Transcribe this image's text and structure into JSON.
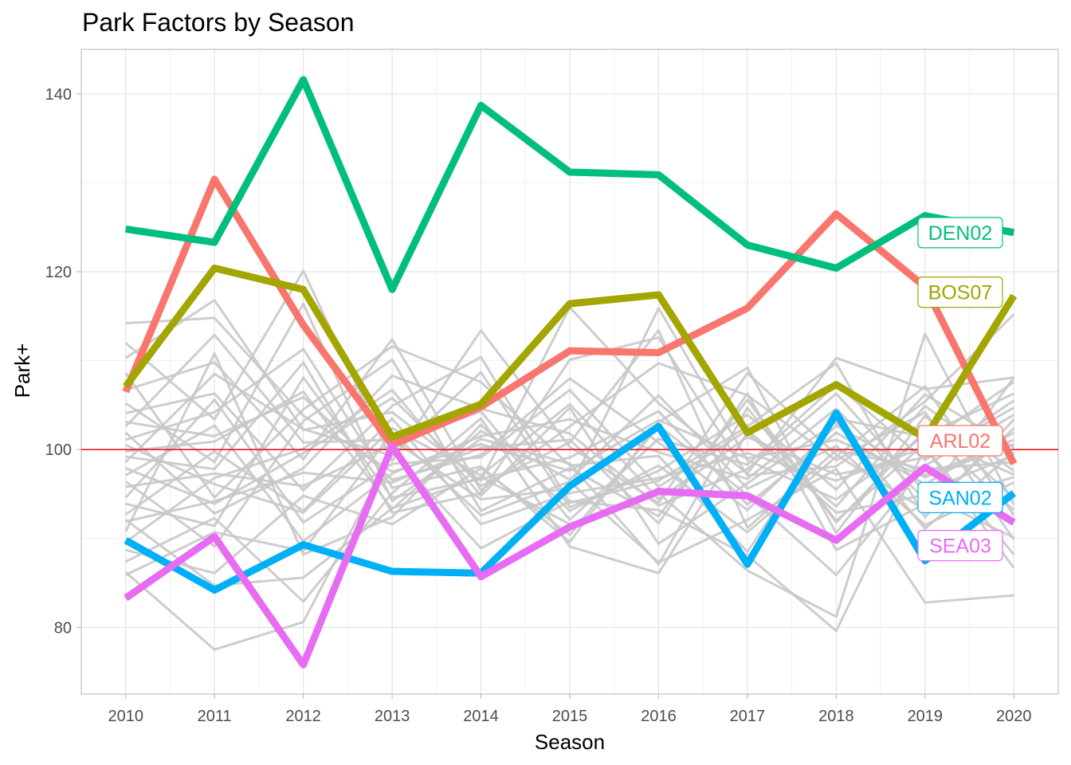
{
  "chart_data": {
    "type": "line",
    "title": "Park Factors by Season",
    "xlabel": "Season",
    "ylabel": "Park+",
    "x": [
      2010,
      2011,
      2012,
      2013,
      2014,
      2015,
      2016,
      2017,
      2018,
      2019,
      2020
    ],
    "xlim": [
      2009.5,
      2020.5
    ],
    "ylim": [
      72.5,
      145
    ],
    "yticks": [
      80,
      100,
      120,
      140
    ],
    "grid": true,
    "reference_line": {
      "y": 100,
      "color": "#e31a1c"
    },
    "background_color": "#c8c8c8",
    "highlighted_series": [
      {
        "name": "ARL02",
        "color": "#F8766D",
        "values": [
          106.5,
          130.4,
          114,
          100.5,
          104.8,
          111.1,
          110.9,
          115.9,
          126.5,
          118.3,
          98.4
        ]
      },
      {
        "name": "BOS07",
        "color": "#A3A500",
        "values": [
          107.1,
          120.4,
          118,
          101.4,
          105.1,
          116.4,
          117.4,
          101.9,
          107.3,
          101.3,
          117.3
        ]
      },
      {
        "name": "DEN02",
        "color": "#00BF7D",
        "values": [
          124.8,
          123.3,
          141.6,
          118,
          138.7,
          131.2,
          130.9,
          123,
          120.4,
          126.3,
          124.4
        ]
      },
      {
        "name": "SAN02",
        "color": "#00B0F6",
        "values": [
          89.8,
          84.2,
          89.3,
          86.3,
          86.1,
          95.9,
          102.6,
          87.1,
          104.1,
          87.5,
          95.1
        ]
      },
      {
        "name": "SEA03",
        "color": "#E76BF3",
        "values": [
          83.3,
          90.2,
          75.8,
          100.4,
          85.7,
          91.3,
          95.3,
          94.8,
          89.8,
          98,
          91.8
        ]
      }
    ],
    "background_series": [
      [
        114.2,
        114.8,
        103.8,
        97.5,
        100.6,
        97.6,
        103.3,
        99,
        101.1,
        96.9,
        100.6
      ],
      [
        112,
        103.4,
        120.1,
        98.7,
        113.4,
        100.3,
        94,
        108.6,
        99.4,
        93.2,
        102.4
      ],
      [
        110.3,
        116.8,
        102.2,
        104.2,
        96.5,
        116,
        105.2,
        97.3,
        110.3,
        106.8,
        108.1
      ],
      [
        108.6,
        94.6,
        104.5,
        111.6,
        107.6,
        98.2,
        99.3,
        88.5,
        103.5,
        101.4,
        97.2
      ],
      [
        106.7,
        109.8,
        98.9,
        112.4,
        95.4,
        102.6,
        109.7,
        106.1,
        98.8,
        104.2,
        89.9
      ],
      [
        105.2,
        98.6,
        116.4,
        94.2,
        101.2,
        98.4,
        87.1,
        104.7,
        92,
        100.7,
        107.6
      ],
      [
        104.1,
        106.3,
        95.4,
        104.9,
        110.4,
        94,
        96.5,
        102.6,
        109.7,
        92.4,
        103.4
      ],
      [
        103.1,
        101.5,
        105.9,
        96.6,
        99.4,
        108,
        100.8,
        93.2,
        102.7,
        97.1,
        101.1
      ],
      [
        102.6,
        112.9,
        100.8,
        101.1,
        94.4,
        95.6,
        115.9,
        98.8,
        94.4,
        101.6,
        106.3
      ],
      [
        101.9,
        92.8,
        97.9,
        108.3,
        104.6,
        101.8,
        93.7,
        97.8,
        106.3,
        95.2,
        99.4
      ],
      [
        101.1,
        104.2,
        111.3,
        95.7,
        98.1,
        89.6,
        103.1,
        109.2,
        90.6,
        103.8,
        94.5
      ],
      [
        100.5,
        96.1,
        92.9,
        102.4,
        97.1,
        105.1,
        94.4,
        101.4,
        97.2,
        99.1,
        104.7
      ],
      [
        99.8,
        100.9,
        106.5,
        93.3,
        102.1,
        96.6,
        106.1,
        95.6,
        100.4,
        91.5,
        96.3
      ],
      [
        98.6,
        108.5,
        102.3,
        99.3,
        108.7,
        93.5,
        97.6,
        103.9,
        95.5,
        106.2,
        100.2
      ],
      [
        97.9,
        93.9,
        99.6,
        105.8,
        95.9,
        100.8,
        113.4,
        91.2,
        99.9,
        97.8,
        98.6
      ],
      [
        97.1,
        102.7,
        89.7,
        97.3,
        101.5,
        103.4,
        99.7,
        96.7,
        104.6,
        94.3,
        108.1
      ],
      [
        96.4,
        89.1,
        103.2,
        110.1,
        93.1,
        97.9,
        92.5,
        105.6,
        91.8,
        102.1,
        93.2
      ],
      [
        95.8,
        97.3,
        95.9,
        100.6,
        104.3,
        92.1,
        101.2,
        98.3,
        107.3,
        98.8,
        105.5
      ],
      [
        94.6,
        105.6,
        91.8,
        98.4,
        99.1,
        106.7,
        95.8,
        102.2,
        93.6,
        104.9,
        97.6
      ],
      [
        93.9,
        91.4,
        108.1,
        94.6,
        96.7,
        99.1,
        104.3,
        93.8,
        101.9,
        96.1,
        101.9
      ],
      [
        92.7,
        99.8,
        93.1,
        103.5,
        91.6,
        95.1,
        96.8,
        99.6,
        96.5,
        100.3,
        88.2
      ],
      [
        91.9,
        94.2,
        97.4,
        96.3,
        100.2,
        101.1,
        91.7,
        106.3,
        88.7,
        93.9,
        96.9
      ],
      [
        90.8,
        110.8,
        88.2,
        92.4,
        102.8,
        93.1,
        98.2,
        90.7,
        99.2,
        107.1,
        92.6
      ],
      [
        89.6,
        96.8,
        100.1,
        106.7,
        94.8,
        104.7,
        89.4,
        96.2,
        103.1,
        91.1,
        99.7
      ],
      [
        88.7,
        86.1,
        94.8,
        91.6,
        97.9,
        90.4,
        102.7,
        94.9,
        85.9,
        98.2,
        103.9
      ],
      [
        87.4,
        92.3,
        82.9,
        95.1,
        103.5,
        89.1,
        86.1,
        101.9,
        92.9,
        94.9,
        90.1
      ],
      [
        86.2,
        77.5,
        80.6,
        99.7,
        88.9,
        94.2,
        93.2,
        88.1,
        79.6,
        100.2,
        86.7
      ],
      [
        85.9,
        90.7,
        88.6,
        101.9,
        92.6,
        96.4,
        87.3,
        92.1,
        97.8,
        82.8,
        83.6
      ],
      [
        92.1,
        84.7,
        85.6,
        93.4,
        96.9,
        91.6,
        95.1,
        86.4,
        81.2,
        113,
        93.8
      ],
      [
        99.2,
        97.8,
        109.8,
        92.9,
        95.1,
        110.1,
        112.6,
        97.1,
        98.1,
        105.4,
        115.2
      ]
    ]
  }
}
